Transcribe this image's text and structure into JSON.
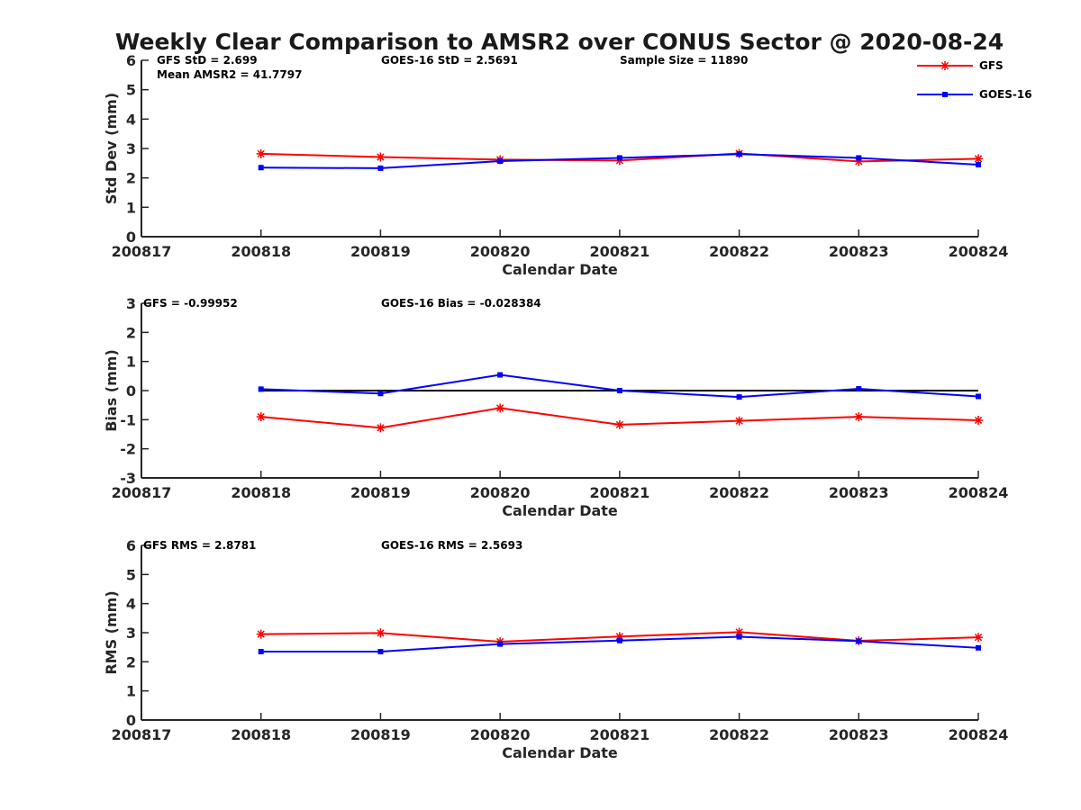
{
  "title": "Weekly Clear Comparison to AMSR2 over CONUS Sector @ 2020-08-24",
  "colors": {
    "GFS": "#ff0000",
    "GOES-16": "#0000ff",
    "zero_line": "#000000",
    "axis": "#262626"
  },
  "legend": {
    "placement": "top-right",
    "entries": [
      {
        "name": "GFS",
        "marker": "asterisk"
      },
      {
        "name": "GOES-16",
        "marker": "square"
      }
    ]
  },
  "chart_data": [
    {
      "type": "line",
      "ylabel": "Std Dev (mm)",
      "xlabel": "Calendar Date",
      "ylim": [
        0,
        6
      ],
      "yticks": [
        "0",
        "1",
        "2",
        "3",
        "4",
        "5",
        "6"
      ],
      "x": [
        "200817",
        "200818",
        "200819",
        "200820",
        "200821",
        "200822",
        "200823",
        "200824"
      ],
      "series": [
        {
          "name": "GFS",
          "values": [
            null,
            2.82,
            2.71,
            2.62,
            2.59,
            2.83,
            2.56,
            2.65
          ]
        },
        {
          "name": "GOES-16",
          "values": [
            null,
            2.35,
            2.33,
            2.57,
            2.68,
            2.81,
            2.68,
            2.45
          ]
        }
      ],
      "annotations": [
        "GFS StD = 2.699",
        "GOES-16 StD = 2.5691",
        "Sample Size = 11890",
        "Mean AMSR2 = 41.7797"
      ]
    },
    {
      "type": "line",
      "ylabel": "Bias (mm)",
      "xlabel": "Calendar Date",
      "ylim": [
        -3,
        3
      ],
      "yticks": [
        "-3",
        "-2",
        "-1",
        "0",
        "1",
        "2",
        "3"
      ],
      "x": [
        "200817",
        "200818",
        "200819",
        "200820",
        "200821",
        "200822",
        "200823",
        "200824"
      ],
      "zero_line": true,
      "series": [
        {
          "name": "GFS",
          "values": [
            null,
            -0.9,
            -1.28,
            -0.6,
            -1.17,
            -1.04,
            -0.9,
            -1.02
          ]
        },
        {
          "name": "GOES-16",
          "values": [
            null,
            0.05,
            -0.1,
            0.54,
            0.0,
            -0.22,
            0.06,
            -0.2
          ]
        }
      ],
      "annotations": [
        "GFS = -0.99952",
        "GOES-16 Bias  = -0.028384"
      ]
    },
    {
      "type": "line",
      "ylabel": "RMS (mm)",
      "xlabel": "Calendar Date",
      "ylim": [
        0,
        6
      ],
      "yticks": [
        "0",
        "1",
        "2",
        "3",
        "4",
        "5",
        "6"
      ],
      "x": [
        "200817",
        "200818",
        "200819",
        "200820",
        "200821",
        "200822",
        "200823",
        "200824"
      ],
      "series": [
        {
          "name": "GFS",
          "values": [
            null,
            2.95,
            2.99,
            2.69,
            2.87,
            3.02,
            2.72,
            2.84
          ]
        },
        {
          "name": "GOES-16",
          "values": [
            null,
            2.35,
            2.35,
            2.61,
            2.73,
            2.86,
            2.71,
            2.48
          ]
        }
      ],
      "annotations": [
        "GFS RMS = 2.8781",
        "GOES-16 RMS = 2.5693"
      ]
    }
  ]
}
